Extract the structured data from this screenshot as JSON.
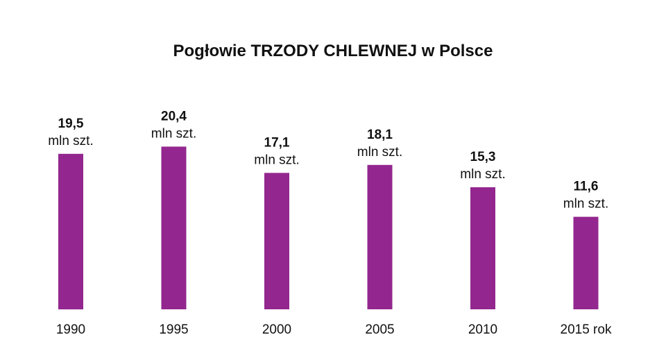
{
  "chart_data": {
    "type": "bar",
    "title": "Pogłowie TRZODY CHLEWNEJ w Polsce",
    "categories": [
      "1990",
      "1995",
      "2000",
      "2005",
      "2010",
      "2015 rok"
    ],
    "values": [
      19.5,
      20.4,
      17.1,
      18.1,
      15.3,
      11.6
    ],
    "value_labels": [
      "19,5",
      "20,4",
      "17,1",
      "18,1",
      "15,3",
      "11,6"
    ],
    "unit_label": "mln szt.",
    "ylim": [
      0,
      21
    ],
    "grid": false,
    "legend": "none",
    "bar_color": "#93278f"
  }
}
